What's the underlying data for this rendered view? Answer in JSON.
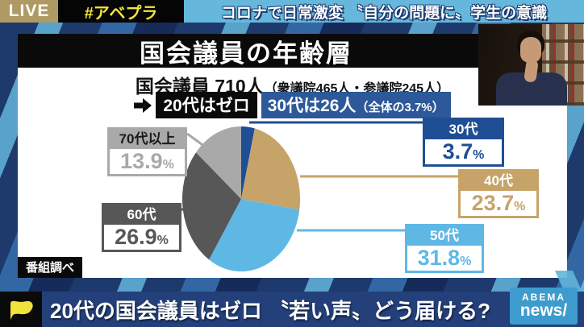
{
  "top_bar": {
    "live_label": "LIVE",
    "hashtag": "#アベプラ",
    "headline": "コロナで日常激変 〝自分の問題に〟学生の意識"
  },
  "panel": {
    "title": "国会議員の年齢層",
    "total_main": "国会議員 710人",
    "total_detail": "（衆議院465人・参議院245人）",
    "zero_box": "20代はゼロ",
    "thirties_main": "30代は26人",
    "thirties_detail": "（全体の3.7%）",
    "source_note": "番組調べ"
  },
  "chart_data": {
    "type": "pie",
    "title": "国会議員の年齢層",
    "total_members": 710,
    "house_breakdown": "衆議院465人・参議院245人",
    "unit": "%",
    "start_angle_deg": 0,
    "direction": "clockwise",
    "segments": [
      {
        "label": "30代",
        "value": 3.7,
        "display": "3.7",
        "color": "#1f4e94"
      },
      {
        "label": "40代",
        "value": 23.7,
        "display": "23.7",
        "color": "#c6a469"
      },
      {
        "label": "50代",
        "value": 31.8,
        "display": "31.8",
        "color": "#5fb8e4"
      },
      {
        "label": "60代",
        "value": 26.9,
        "display": "26.9",
        "color": "#575757"
      },
      {
        "label": "70代以上",
        "value": 13.9,
        "display": "13.9",
        "color": "#a9a9a9"
      }
    ]
  },
  "banner": {
    "text": "20代の国会議員はゼロ 〝若い声〟どう届ける?",
    "logo_line1": "ABEMA",
    "logo_line2": "news/"
  }
}
